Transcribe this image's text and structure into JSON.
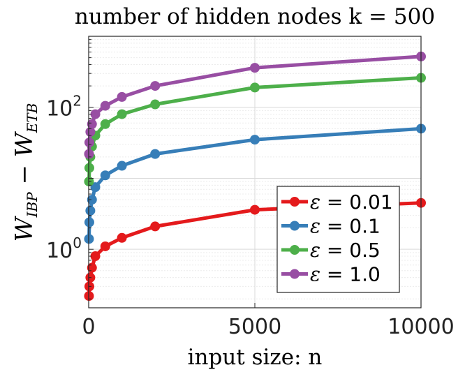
{
  "chart_data": {
    "type": "line",
    "title": "number of hidden nodes k = 500",
    "xlabel": "input size: n",
    "ylabel": {
      "base": "W",
      "sub1": "IBP",
      "op": " − ",
      "sub2": "ETB"
    },
    "x_scale": "linear",
    "y_scale": "log",
    "xlim": [
      0,
      10000
    ],
    "ylim": [
      0.15,
      1000
    ],
    "grid": true,
    "legend_location": "lower-right",
    "x_ticks": [
      {
        "value": 0,
        "label": "0"
      },
      {
        "value": 5000,
        "label": "5000"
      },
      {
        "value": 10000,
        "label": "10000"
      }
    ],
    "y_ticks": [
      {
        "value": 1,
        "base": "10",
        "exp": "0"
      },
      {
        "value": 100,
        "base": "10",
        "exp": "2"
      }
    ],
    "x": [
      10,
      20,
      50,
      100,
      200,
      500,
      1000,
      2000,
      5000,
      10000
    ],
    "series": [
      {
        "name": "ε = 0.01",
        "eps_symbol": "ε",
        "eps_value": " = 0.01",
        "color": "#e41a1c",
        "values": [
          0.22,
          0.3,
          0.4,
          0.55,
          0.8,
          1.1,
          1.45,
          2.1,
          3.6,
          4.5
        ]
      },
      {
        "name": "ε = 0.1",
        "eps_symbol": "ε",
        "eps_value": " = 0.1",
        "color": "#377eb8",
        "values": [
          1.4,
          2.4,
          3.5,
          5.0,
          7.5,
          11,
          15,
          22,
          35,
          50
        ]
      },
      {
        "name": "ε = 0.5",
        "eps_symbol": "ε",
        "eps_value": " = 0.5",
        "color": "#4daf4a",
        "values": [
          9,
          14,
          20,
          28,
          40,
          58,
          80,
          110,
          190,
          260
        ]
      },
      {
        "name": "ε = 1.0",
        "eps_symbol": "ε",
        "eps_value": " = 1.0",
        "color": "#984ea3",
        "values": [
          22,
          32,
          45,
          58,
          80,
          105,
          140,
          200,
          360,
          520
        ]
      }
    ]
  }
}
